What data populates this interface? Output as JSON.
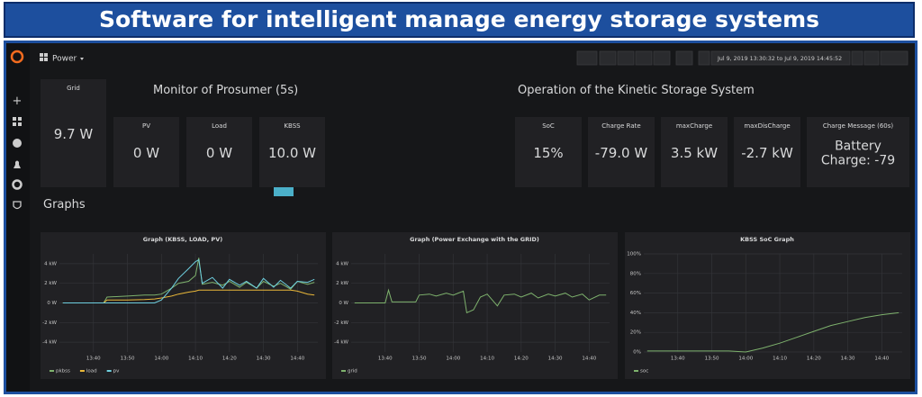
{
  "banner": {
    "title": "Software for intelligent manage energy storage systems"
  },
  "toolbar": {
    "dashboard": "Power",
    "time_range": "Jul 9, 2019 13:30:32 to Jul 9, 2019 14:45:52"
  },
  "rows": {
    "prosumer": "Monitor of Prosumer (5s)",
    "kinetic": "Operation of the Kinetic Storage System",
    "graphs": "Graphs"
  },
  "stats": [
    {
      "title": "Grid",
      "value": "9.7 W"
    },
    {
      "title": "PV",
      "value": "0 W"
    },
    {
      "title": "Load",
      "value": "0 W"
    },
    {
      "title": "KBSS",
      "value": "10.0 W"
    },
    {
      "title": "SoC",
      "value": "15%"
    },
    {
      "title": "Charge Rate",
      "value": "-79.0 W"
    },
    {
      "title": "maxCharge",
      "value": "3.5 kW"
    },
    {
      "title": "maxDisCharge",
      "value": "-2.7 kW"
    },
    {
      "title": "Charge Message (60s)",
      "value": "Battery Charge: -79"
    }
  ],
  "charts": [
    {
      "type": "line",
      "title": "Graph (KBSS, LOAD, PV)",
      "xlim": [
        "13:30",
        "14:46"
      ],
      "xticks": [
        "13:40",
        "13:50",
        "14:00",
        "14:10",
        "14:20",
        "14:30",
        "14:40"
      ],
      "ylim": [
        -5000,
        5000
      ],
      "yticks": [
        {
          "value": 4000,
          "label": "4 kW"
        },
        {
          "value": 2000,
          "label": "2 kW"
        },
        {
          "value": 0,
          "label": "0 W"
        },
        {
          "value": -2000,
          "label": "-2 kW"
        },
        {
          "value": -4000,
          "label": "-4 kW"
        }
      ],
      "x": [
        "13:31",
        "13:35",
        "13:40",
        "13:43",
        "13:44",
        "13:50",
        "13:55",
        "13:58",
        "14:00",
        "14:03",
        "14:05",
        "14:08",
        "14:10",
        "14:11",
        "14:12",
        "14:15",
        "14:18",
        "14:20",
        "14:23",
        "14:25",
        "14:28",
        "14:30",
        "14:33",
        "14:35",
        "14:38",
        "14:40",
        "14:43",
        "14:45"
      ],
      "series": [
        {
          "name": "pkbss",
          "color": "#7eb26d",
          "values": [
            0,
            0,
            0,
            0,
            600,
            700,
            800,
            800,
            900,
            1500,
            2000,
            2200,
            2800,
            4600,
            1900,
            2100,
            1800,
            2200,
            1600,
            2100,
            1500,
            2200,
            1700,
            2000,
            1400,
            2200,
            1900,
            2100
          ]
        },
        {
          "name": "load",
          "color": "#eab839",
          "values": [
            0,
            0,
            0,
            0,
            300,
            300,
            350,
            400,
            500,
            700,
            900,
            1100,
            1200,
            1300,
            1300,
            1300,
            1300,
            1300,
            1300,
            1300,
            1300,
            1300,
            1300,
            1300,
            1300,
            1200,
            900,
            800
          ]
        },
        {
          "name": "pv",
          "color": "#6ed0e0",
          "values": [
            0,
            0,
            0,
            0,
            0,
            0,
            0,
            0,
            300,
            1500,
            2500,
            3500,
            4200,
            4400,
            2000,
            2600,
            1500,
            2400,
            1800,
            2200,
            1500,
            2500,
            1600,
            2300,
            1500,
            2200,
            2100,
            2400
          ]
        }
      ]
    },
    {
      "type": "line",
      "title": "Graph (Power Exchange with the GRID)",
      "xlim": [
        "13:30",
        "14:46"
      ],
      "xticks": [
        "13:40",
        "13:50",
        "14:00",
        "14:10",
        "14:20",
        "14:30",
        "14:40"
      ],
      "ylim": [
        -5000,
        5000
      ],
      "yticks": [
        {
          "value": 4000,
          "label": "4 kW"
        },
        {
          "value": 2000,
          "label": "2 kW"
        },
        {
          "value": 0,
          "label": "0 W"
        },
        {
          "value": -2000,
          "label": "-2 kW"
        },
        {
          "value": -4000,
          "label": "-4 kW"
        }
      ],
      "x": [
        "13:31",
        "13:35",
        "13:40",
        "13:41",
        "13:42",
        "13:45",
        "13:49",
        "13:50",
        "13:53",
        "13:55",
        "13:58",
        "14:00",
        "14:03",
        "14:04",
        "14:06",
        "14:08",
        "14:10",
        "14:13",
        "14:15",
        "14:18",
        "14:20",
        "14:23",
        "14:25",
        "14:28",
        "14:30",
        "14:33",
        "14:35",
        "14:38",
        "14:40",
        "14:43",
        "14:45"
      ],
      "series": [
        {
          "name": "grid",
          "color": "#7eb26d",
          "values": [
            0,
            0,
            0,
            1300,
            100,
            100,
            100,
            800,
            900,
            700,
            1000,
            800,
            1200,
            -1000,
            -700,
            600,
            900,
            -300,
            800,
            900,
            600,
            1000,
            500,
            900,
            700,
            1000,
            600,
            900,
            300,
            800,
            800
          ]
        }
      ]
    },
    {
      "type": "line",
      "title": "KBSS SoC Graph",
      "xlim": [
        "13:30",
        "14:46"
      ],
      "xticks": [
        "13:40",
        "13:50",
        "14:00",
        "14:10",
        "14:20",
        "14:30",
        "14:40"
      ],
      "ylim": [
        0,
        100
      ],
      "yticks": [
        {
          "value": 100,
          "label": "100%"
        },
        {
          "value": 80,
          "label": "80%"
        },
        {
          "value": 60,
          "label": "60%"
        },
        {
          "value": 40,
          "label": "40%"
        },
        {
          "value": 20,
          "label": "20%"
        },
        {
          "value": 0,
          "label": "0%"
        }
      ],
      "x": [
        "13:31",
        "13:40",
        "13:50",
        "13:55",
        "14:00",
        "14:05",
        "14:10",
        "14:15",
        "14:20",
        "14:25",
        "14:30",
        "14:35",
        "14:40",
        "14:45"
      ],
      "series": [
        {
          "name": "soc",
          "color": "#7eb26d",
          "values": [
            1,
            1,
            1,
            1,
            0,
            4,
            9,
            15,
            21,
            27,
            31,
            35,
            38,
            40
          ]
        }
      ]
    }
  ]
}
